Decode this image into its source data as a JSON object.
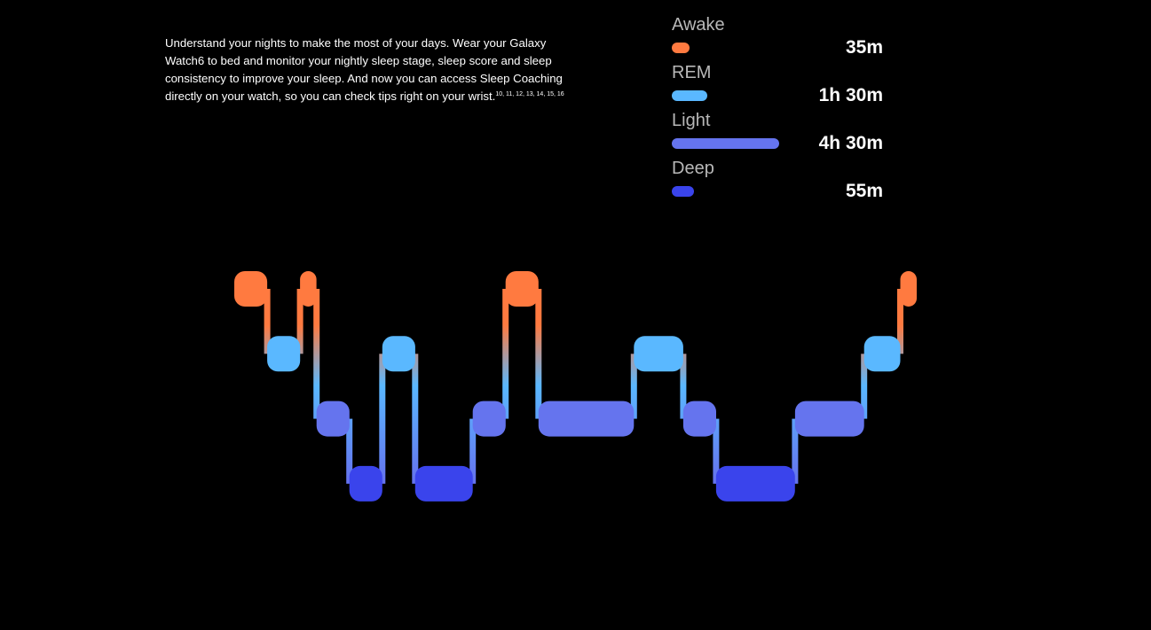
{
  "intro": {
    "text": "Understand your nights to make the most of your days. Wear your Galaxy Watch6 to bed and monitor your nightly sleep stage, sleep score and sleep consistency to improve your sleep. And now you can access Sleep Coaching directly on your watch, so you can check tips right on your wrist.",
    "footnotes": "10, 11, 12, 13, 14, 15, 16"
  },
  "chart_data": {
    "type": "bar",
    "title": "",
    "categories": [
      "Awake",
      "REM",
      "Light",
      "Deep"
    ],
    "values": [
      35,
      90,
      270,
      55
    ],
    "value_labels": [
      "35m",
      "1h 30m",
      "4h 30m",
      "55m"
    ],
    "unit": "minutes",
    "colors": [
      "#ff7a40",
      "#5ab8ff",
      "#6574ee",
      "#3a44ec"
    ],
    "hypnogram": {
      "type": "step",
      "stage_order": [
        "Awake",
        "REM",
        "Light",
        "Deep"
      ],
      "segments": [
        {
          "stage": "Awake",
          "duration": 2
        },
        {
          "stage": "REM",
          "duration": 2
        },
        {
          "stage": "Awake",
          "duration": 1
        },
        {
          "stage": "Light",
          "duration": 2
        },
        {
          "stage": "Deep",
          "duration": 2
        },
        {
          "stage": "REM",
          "duration": 2
        },
        {
          "stage": "Deep",
          "duration": 3.5
        },
        {
          "stage": "Light",
          "duration": 2
        },
        {
          "stage": "Awake",
          "duration": 2
        },
        {
          "stage": "Light",
          "duration": 5.8
        },
        {
          "stage": "REM",
          "duration": 3
        },
        {
          "stage": "Light",
          "duration": 2
        },
        {
          "stage": "Deep",
          "duration": 4.8
        },
        {
          "stage": "Light",
          "duration": 4.2
        },
        {
          "stage": "REM",
          "duration": 2.2
        },
        {
          "stage": "Awake",
          "duration": 1
        }
      ]
    }
  }
}
